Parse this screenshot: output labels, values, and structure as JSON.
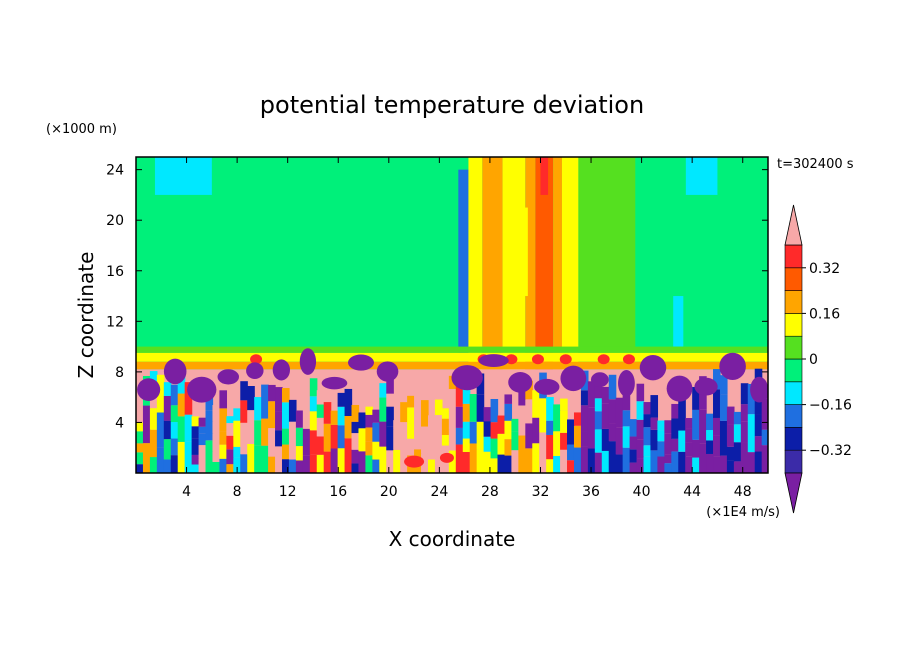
{
  "chart_data": {
    "type": "heatmap",
    "title": "potential temperature deviation",
    "xlabel": "X coordinate",
    "ylabel": "Z coordinate",
    "x_unit": "(×1E4 m/s)",
    "y_unit": "(×1000 m)",
    "time_label": "t=302400 s",
    "xlim": [
      0,
      50
    ],
    "ylim": [
      0,
      25
    ],
    "x_ticks": [
      4,
      8,
      12,
      16,
      20,
      24,
      28,
      32,
      36,
      40,
      44,
      48
    ],
    "y_ticks": [
      4,
      8,
      12,
      16,
      20,
      24
    ],
    "colorbar": {
      "levels": [
        -0.4,
        -0.32,
        -0.24,
        -0.16,
        -0.08,
        0,
        0.08,
        0.16,
        0.24,
        0.32,
        0.4
      ],
      "tick_labels": [
        "0.32",
        "0.16",
        "0",
        "−0.16",
        "−0.32"
      ],
      "tick_values": [
        0.32,
        0.16,
        0,
        -0.16,
        -0.32
      ],
      "colors": [
        "#7a1fa2",
        "#3b2ba8",
        "#0c1ea8",
        "#1f6fe0",
        "#00e8ff",
        "#00f07a",
        "#55e020",
        "#ffff00",
        "#ffa500",
        "#ff5a00",
        "#ff2a2a",
        "#f7a8a8"
      ]
    }
  },
  "colors": {
    "background_field": "#00f07a",
    "frame": "#000000"
  }
}
